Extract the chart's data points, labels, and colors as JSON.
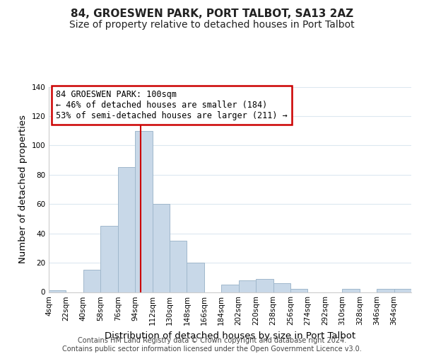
{
  "title": "84, GROESWEN PARK, PORT TALBOT, SA13 2AZ",
  "subtitle": "Size of property relative to detached houses in Port Talbot",
  "xlabel": "Distribution of detached houses by size in Port Talbot",
  "ylabel": "Number of detached properties",
  "bin_edges": [
    4,
    22,
    40,
    58,
    76,
    94,
    112,
    130,
    148,
    166,
    184,
    202,
    220,
    238,
    256,
    274,
    292,
    310,
    328,
    346,
    364,
    382
  ],
  "bar_heights": [
    1,
    0,
    15,
    45,
    85,
    110,
    60,
    35,
    20,
    0,
    5,
    8,
    9,
    6,
    2,
    0,
    0,
    2,
    0,
    2,
    2
  ],
  "bar_color": "#c8d8e8",
  "bar_edge_color": "#a0b8cc",
  "property_line_x": 100,
  "property_line_color": "#cc0000",
  "ylim": [
    0,
    140
  ],
  "yticks": [
    0,
    20,
    40,
    60,
    80,
    100,
    120,
    140
  ],
  "xtick_labels": [
    "4sqm",
    "22sqm",
    "40sqm",
    "58sqm",
    "76sqm",
    "94sqm",
    "112sqm",
    "130sqm",
    "148sqm",
    "166sqm",
    "184sqm",
    "202sqm",
    "220sqm",
    "238sqm",
    "256sqm",
    "274sqm",
    "292sqm",
    "310sqm",
    "328sqm",
    "346sqm",
    "364sqm"
  ],
  "annotation_title": "84 GROESWEN PARK: 100sqm",
  "annotation_line1": "← 46% of detached houses are smaller (184)",
  "annotation_line2": "53% of semi-detached houses are larger (211) →",
  "annotation_box_color": "#ffffff",
  "annotation_box_edge_color": "#cc0000",
  "footer_line1": "Contains HM Land Registry data © Crown copyright and database right 2024.",
  "footer_line2": "Contains public sector information licensed under the Open Government Licence v3.0.",
  "title_fontsize": 11,
  "subtitle_fontsize": 10,
  "axis_label_fontsize": 9.5,
  "tick_label_fontsize": 7.5,
  "annotation_fontsize": 8.5,
  "footer_fontsize": 7,
  "background_color": "#ffffff",
  "grid_color": "#dce8f0"
}
